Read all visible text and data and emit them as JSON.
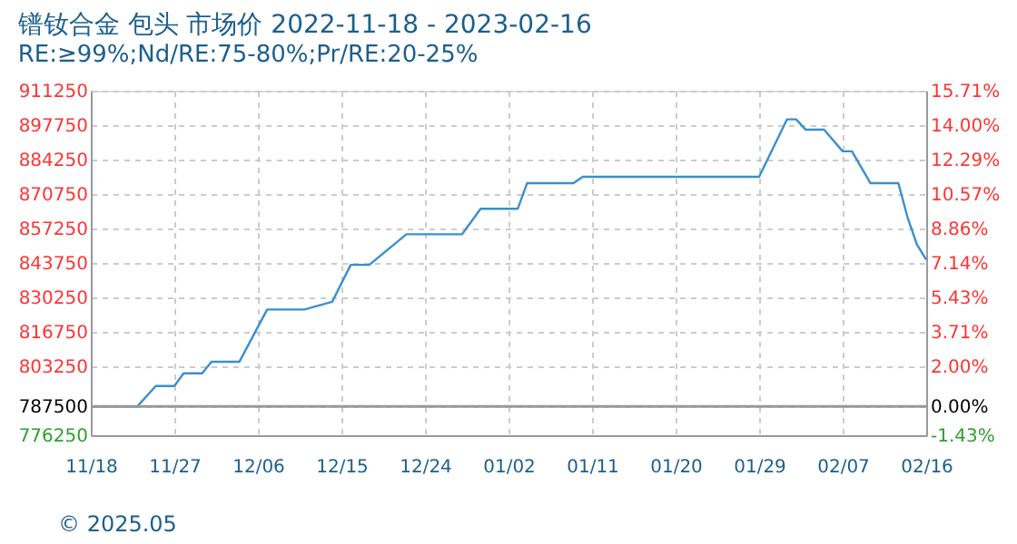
{
  "chart_data": {
    "type": "line",
    "title": "镨钕合金 包头 市场价 2022-11-18 - 2023-02-16",
    "subtitle": "RE:≥99%;Nd/RE:75-80%;Pr/RE:20-25%",
    "x": [
      "2022-11-18",
      "2022-11-23",
      "2022-11-25",
      "2022-11-27",
      "2022-11-28",
      "2022-11-30",
      "2022-12-01",
      "2022-12-04",
      "2022-12-07",
      "2022-12-11",
      "2022-12-14",
      "2022-12-16",
      "2022-12-18",
      "2022-12-22",
      "2022-12-28",
      "2022-12-30",
      "2023-01-03",
      "2023-01-04",
      "2023-01-09",
      "2023-01-10",
      "2023-01-29",
      "2023-02-01",
      "2023-02-02",
      "2023-02-03",
      "2023-02-05",
      "2023-02-07",
      "2023-02-08",
      "2023-02-10",
      "2023-02-13",
      "2023-02-14",
      "2023-02-15",
      "2023-02-16"
    ],
    "series": [
      {
        "color": "#3a8fd0",
        "values": [
          787500,
          787500,
          795500,
          795500,
          800500,
          800500,
          805000,
          805000,
          825500,
          825500,
          828500,
          843000,
          843000,
          855000,
          855000,
          865000,
          865000,
          875000,
          875000,
          877500,
          877500,
          900000,
          900000,
          896000,
          896000,
          887500,
          887500,
          875000,
          875000,
          861500,
          851000,
          845000
        ]
      }
    ],
    "xlim": [
      "2022-11-18",
      "2023-02-16"
    ],
    "xticks": [
      {
        "value": "2022-11-18",
        "label": "11/18"
      },
      {
        "value": "2022-11-27",
        "label": "11/27"
      },
      {
        "value": "2022-12-06",
        "label": "12/06"
      },
      {
        "value": "2022-12-15",
        "label": "12/15"
      },
      {
        "value": "2022-12-24",
        "label": "12/24"
      },
      {
        "value": "2023-01-02",
        "label": "01/02"
      },
      {
        "value": "2023-01-11",
        "label": "01/11"
      },
      {
        "value": "2023-01-20",
        "label": "01/20"
      },
      {
        "value": "2023-01-29",
        "label": "01/29"
      },
      {
        "value": "2023-02-07",
        "label": "02/07"
      },
      {
        "value": "2023-02-16",
        "label": "02/16"
      }
    ],
    "ylim": [
      776250,
      911250
    ],
    "yticks": [
      776250,
      787500,
      803250,
      816750,
      830250,
      843750,
      857250,
      870750,
      884250,
      897750,
      911250
    ],
    "y2lim": [
      -1.43,
      15.71
    ],
    "y2ticks": [
      {
        "value": -1.43,
        "label": "-1.43%"
      },
      {
        "value": 0,
        "label": "0.00%"
      },
      {
        "value": 2,
        "label": "2.00%"
      },
      {
        "value": 3.71,
        "label": "3.71%"
      },
      {
        "value": 5.43,
        "label": "5.43%"
      },
      {
        "value": 7.14,
        "label": "7.14%"
      },
      {
        "value": 8.86,
        "label": "8.86%"
      },
      {
        "value": 10.57,
        "label": "10.57%"
      },
      {
        "value": 12.29,
        "label": "12.29%"
      },
      {
        "value": 14,
        "label": "14.00%"
      },
      {
        "value": 15.71,
        "label": "15.71%"
      }
    ],
    "ref_lines": [
      {
        "axis": "y",
        "value": 787500,
        "color": "#999999"
      }
    ],
    "annotations": [
      "© 2025.05"
    ],
    "grid": true,
    "marker": "none",
    "line_style": "solid"
  }
}
